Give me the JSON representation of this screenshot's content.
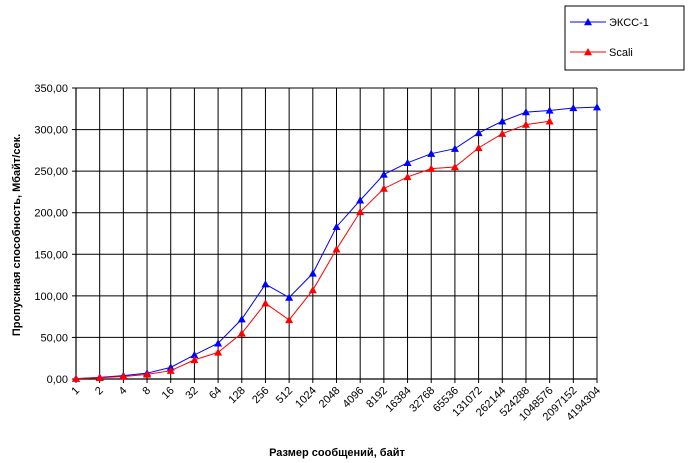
{
  "chart_data": {
    "type": "line",
    "xlabel": "Размер сообщений, байт",
    "ylabel": "Пропускная способность, Мбайт/сек.",
    "ylim": [
      0,
      350
    ],
    "y_ticks": [
      "0,00",
      "50,00",
      "100,00",
      "150,00",
      "200,00",
      "250,00",
      "300,00",
      "350,00"
    ],
    "categories": [
      "1",
      "2",
      "4",
      "8",
      "16",
      "32",
      "64",
      "128",
      "256",
      "512",
      "1024",
      "2048",
      "4096",
      "8192",
      "16384",
      "32768",
      "65536",
      "131072",
      "262144",
      "524288",
      "1048576",
      "2097152",
      "4194304"
    ],
    "grid": "both",
    "legend_position": "top-right",
    "series": [
      {
        "name": "ЭКСС-1",
        "color": "#0000ff",
        "marker": "triangle",
        "values": [
          0.5,
          2,
          4,
          7,
          14,
          29,
          43,
          72,
          114,
          98,
          127,
          183,
          215,
          246,
          260,
          271,
          277,
          296,
          310,
          321,
          323,
          326,
          327
        ]
      },
      {
        "name": "Scali",
        "color": "#ff0000",
        "marker": "triangle",
        "values": [
          0.5,
          1.5,
          3,
          5.5,
          10,
          23,
          32,
          55,
          91,
          71,
          107,
          156,
          201,
          229,
          243,
          253,
          255,
          278,
          295,
          306,
          310,
          null,
          null
        ]
      }
    ]
  }
}
